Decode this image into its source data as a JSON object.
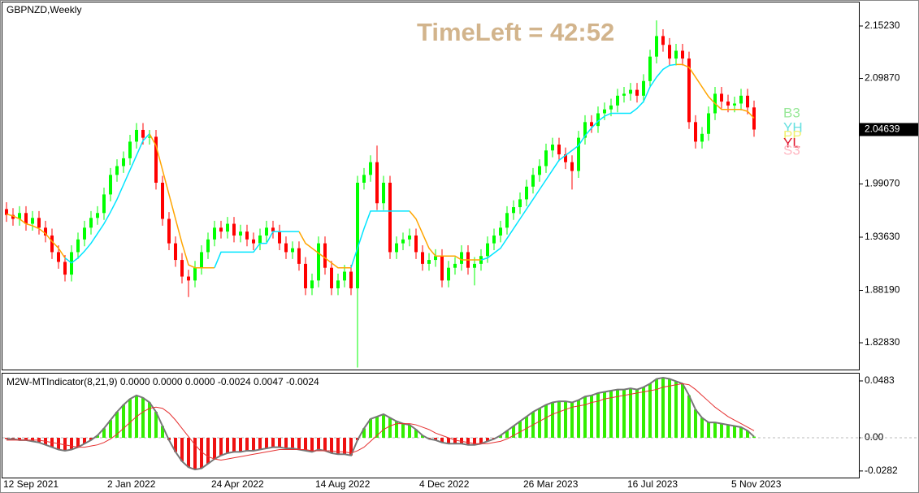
{
  "chart_data": [
    {
      "type": "candlestick",
      "title": "GBPNZD,Weekly",
      "annotation": "TimeLeft = 42:52",
      "categories": [
        "12 Sep 2021",
        null,
        null,
        null,
        null,
        null,
        null,
        null,
        null,
        null,
        null,
        null,
        null,
        null,
        null,
        null,
        "2 Jan 2022",
        null,
        null,
        null,
        null,
        null,
        null,
        null,
        null,
        null,
        null,
        null,
        null,
        null,
        null,
        null,
        "24 Apr 2022",
        null,
        null,
        null,
        null,
        null,
        null,
        null,
        null,
        null,
        null,
        null,
        null,
        null,
        null,
        null,
        "14 Aug 2022",
        null,
        null,
        null,
        null,
        null,
        null,
        null,
        null,
        null,
        null,
        null,
        null,
        null,
        null,
        null,
        "4 Dec 2022",
        null,
        null,
        null,
        null,
        null,
        null,
        null,
        null,
        null,
        null,
        null,
        null,
        null,
        null,
        null,
        "26 Mar 2023",
        null,
        null,
        null,
        null,
        null,
        null,
        null,
        null,
        null,
        null,
        null,
        null,
        null,
        null,
        null,
        "16 Jul 2023",
        null,
        null,
        null,
        null,
        null,
        null,
        null,
        null,
        null,
        null,
        null,
        null,
        null,
        null,
        null,
        "5 Nov 2023",
        null,
        null,
        null
      ],
      "open": [
        1.965,
        1.959,
        1.955,
        1.961,
        1.95,
        1.956,
        1.946,
        1.938,
        1.921,
        1.911,
        1.898,
        1.921,
        1.934,
        1.946,
        1.956,
        1.961,
        1.98,
        2.0,
        2.009,
        2.017,
        2.034,
        2.046,
        2.038,
        2.039,
        1.992,
        1.955,
        1.93,
        1.913,
        1.896,
        1.892,
        1.905,
        1.921,
        1.934,
        1.946,
        1.942,
        1.95,
        1.938,
        1.942,
        1.934,
        1.93,
        1.938,
        1.946,
        1.942,
        1.93,
        1.921,
        1.925,
        1.909,
        1.884,
        1.892,
        1.93,
        1.905,
        1.884,
        1.892,
        1.901,
        1.884,
        1.992,
        2.0,
        2.013,
        1.971,
        1.992,
        1.921,
        1.93,
        1.934,
        1.938,
        1.921,
        1.909,
        1.913,
        1.917,
        1.892,
        1.905,
        1.909,
        1.921,
        1.905,
        1.909,
        1.917,
        1.93,
        1.938,
        1.946,
        1.961,
        1.967,
        1.975,
        1.988,
        2.0,
        2.009,
        2.025,
        2.031,
        2.021,
        2.013,
        2.004,
        2.038,
        2.054,
        2.05,
        2.063,
        2.067,
        2.071,
        2.081,
        2.083,
        2.087,
        2.081,
        2.096,
        2.121,
        2.142,
        2.133,
        2.119,
        2.127,
        2.119,
        2.054,
        2.034,
        2.042,
        2.063,
        2.083,
        2.075,
        2.071,
        2.073,
        2.081,
        2.069
      ],
      "high": [
        1.972,
        1.966,
        1.968,
        1.968,
        1.963,
        1.963,
        1.953,
        1.945,
        1.928,
        1.918,
        1.928,
        1.941,
        1.953,
        1.963,
        1.968,
        1.987,
        2.007,
        2.016,
        2.024,
        2.041,
        2.053,
        2.053,
        2.046,
        2.046,
        1.999,
        1.962,
        1.937,
        1.92,
        1.903,
        1.912,
        1.928,
        1.941,
        1.953,
        1.953,
        1.957,
        1.957,
        1.949,
        1.949,
        1.941,
        1.945,
        1.953,
        1.953,
        1.949,
        1.937,
        1.932,
        1.932,
        1.916,
        1.899,
        1.937,
        1.937,
        1.912,
        1.899,
        1.908,
        1.908,
        1.999,
        2.007,
        2.02,
        2.03,
        1.999,
        1.999,
        1.937,
        1.941,
        1.945,
        1.945,
        1.928,
        1.92,
        1.924,
        1.924,
        1.912,
        1.916,
        1.928,
        1.928,
        1.916,
        1.924,
        1.937,
        1.945,
        1.953,
        1.968,
        1.974,
        1.982,
        1.995,
        2.007,
        2.016,
        2.032,
        2.038,
        2.038,
        2.028,
        2.02,
        2.045,
        2.061,
        2.061,
        2.07,
        2.074,
        2.078,
        2.088,
        2.09,
        2.094,
        2.094,
        2.103,
        2.128,
        2.158,
        2.149,
        2.14,
        2.134,
        2.134,
        2.126,
        2.061,
        2.049,
        2.07,
        2.09,
        2.09,
        2.082,
        2.08,
        2.088,
        2.088,
        2.076
      ],
      "low": [
        1.952,
        1.948,
        1.948,
        1.943,
        1.943,
        1.939,
        1.931,
        1.914,
        1.904,
        1.891,
        1.891,
        1.914,
        1.927,
        1.939,
        1.949,
        1.954,
        1.973,
        1.993,
        2.002,
        2.01,
        2.027,
        2.031,
        2.031,
        1.985,
        1.948,
        1.923,
        1.906,
        1.889,
        1.875,
        1.885,
        1.898,
        1.914,
        1.927,
        1.935,
        1.935,
        1.931,
        1.931,
        1.927,
        1.923,
        1.923,
        1.931,
        1.935,
        1.923,
        1.914,
        1.914,
        1.902,
        1.877,
        1.877,
        1.885,
        1.898,
        1.877,
        1.877,
        1.885,
        1.877,
        1.803,
        1.985,
        1.993,
        1.964,
        1.964,
        1.914,
        1.914,
        1.923,
        1.927,
        1.914,
        1.902,
        1.902,
        1.906,
        1.885,
        1.885,
        1.898,
        1.902,
        1.898,
        1.887,
        1.902,
        1.91,
        1.923,
        1.931,
        1.939,
        1.954,
        1.96,
        1.968,
        1.981,
        1.993,
        2.002,
        2.018,
        2.014,
        2.006,
        1.985,
        1.997,
        2.031,
        2.043,
        2.043,
        2.056,
        2.06,
        2.064,
        2.074,
        2.076,
        2.074,
        2.074,
        2.089,
        2.114,
        2.126,
        2.112,
        2.112,
        2.112,
        2.047,
        2.027,
        2.027,
        2.035,
        2.056,
        2.068,
        2.064,
        2.064,
        2.066,
        2.062,
        2.039
      ],
      "close": [
        1.959,
        1.955,
        1.961,
        1.95,
        1.956,
        1.946,
        1.938,
        1.921,
        1.911,
        1.898,
        1.921,
        1.934,
        1.946,
        1.956,
        1.961,
        1.98,
        2.0,
        2.009,
        2.017,
        2.034,
        2.046,
        2.038,
        2.039,
        1.992,
        1.955,
        1.93,
        1.913,
        1.896,
        1.892,
        1.905,
        1.921,
        1.934,
        1.946,
        1.942,
        1.95,
        1.938,
        1.942,
        1.934,
        1.93,
        1.938,
        1.946,
        1.942,
        1.93,
        1.921,
        1.925,
        1.909,
        1.884,
        1.892,
        1.93,
        1.905,
        1.884,
        1.892,
        1.901,
        1.884,
        1.992,
        2.0,
        2.013,
        1.971,
        1.992,
        1.921,
        1.93,
        1.934,
        1.938,
        1.921,
        1.909,
        1.913,
        1.917,
        1.892,
        1.905,
        1.909,
        1.921,
        1.905,
        1.909,
        1.917,
        1.93,
        1.938,
        1.946,
        1.961,
        1.967,
        1.975,
        1.988,
        2.0,
        2.009,
        2.025,
        2.031,
        2.021,
        2.013,
        2.004,
        2.038,
        2.054,
        2.05,
        2.063,
        2.067,
        2.071,
        2.081,
        2.083,
        2.087,
        2.081,
        2.096,
        2.121,
        2.142,
        2.133,
        2.119,
        2.127,
        2.119,
        2.054,
        2.034,
        2.042,
        2.063,
        2.083,
        2.075,
        2.071,
        2.073,
        2.081,
        2.069,
        2.04639
      ],
      "up_color": "#00ff00",
      "down_color": "#ff0000",
      "series": [
        {
          "color": "#ffa500",
          "values": [
            1.96,
            1.958,
            1.955,
            1.95,
            1.948,
            1.945,
            1.94,
            1.932,
            1.925,
            1.915,
            null,
            null,
            null,
            null,
            null,
            null,
            null,
            null,
            null,
            null,
            null,
            null,
            2.042,
            2.03,
            2.005,
            1.98,
            1.955,
            1.93,
            1.908,
            1.905,
            1.905,
            1.905,
            1.905,
            null,
            null,
            null,
            null,
            null,
            null,
            null,
            null,
            null,
            null,
            null,
            null,
            1.942,
            1.93,
            1.925,
            1.92,
            1.915,
            1.91,
            1.905,
            1.905,
            1.905,
            null,
            null,
            null,
            null,
            null,
            null,
            null,
            null,
            1.963,
            1.955,
            1.94,
            1.925,
            1.917,
            1.917,
            1.917,
            1.917,
            1.913,
            1.913,
            1.913,
            1.913,
            null,
            null,
            null,
            null,
            null,
            null,
            null,
            null,
            null,
            null,
            null,
            null,
            null,
            null,
            null,
            null,
            null,
            null,
            null,
            null,
            null,
            null,
            null,
            null,
            null,
            null,
            null,
            null,
            null,
            2.113,
            2.113,
            2.11,
            2.1,
            2.09,
            2.08,
            2.073,
            2.067,
            2.067,
            2.067,
            2.067,
            2.065,
            2.058
          ]
        },
        {
          "color": "#00e5ff",
          "values": [
            null,
            null,
            null,
            null,
            null,
            null,
            null,
            null,
            null,
            1.915,
            1.91,
            1.915,
            1.922,
            1.93,
            1.94,
            1.95,
            1.962,
            1.975,
            1.99,
            2.005,
            2.02,
            2.035,
            2.042,
            null,
            null,
            null,
            null,
            null,
            null,
            null,
            null,
            null,
            1.905,
            1.921,
            1.921,
            1.921,
            1.921,
            1.921,
            1.921,
            1.93,
            1.93,
            1.942,
            1.942,
            1.942,
            1.942,
            1.942,
            null,
            null,
            null,
            null,
            null,
            null,
            null,
            1.905,
            1.925,
            1.945,
            1.963,
            1.963,
            1.963,
            1.963,
            1.963,
            1.963,
            1.963,
            null,
            null,
            null,
            null,
            null,
            null,
            null,
            null,
            null,
            null,
            1.913,
            1.915,
            1.92,
            1.925,
            1.935,
            1.945,
            1.955,
            1.965,
            1.975,
            1.985,
            1.995,
            2.005,
            2.015,
            2.02,
            2.025,
            2.03,
            2.04,
            2.048,
            2.055,
            2.06,
            2.063,
            2.063,
            2.063,
            2.063,
            2.068,
            2.075,
            2.09,
            2.1,
            2.108,
            2.112,
            2.113,
            null,
            null,
            null,
            null,
            null,
            null,
            null,
            null,
            null,
            null,
            null,
            null
          ]
        }
      ],
      "levels": [
        {
          "label": "B3",
          "color": "#98e898"
        },
        {
          "label": "YH",
          "color": "#66e0e0"
        },
        {
          "label": "PP",
          "color": "#f0f070"
        },
        {
          "label": "YL",
          "color": "#e0142c"
        },
        {
          "label": "S3",
          "color": "#ffb6c1"
        }
      ],
      "ylim": [
        1.8009,
        2.1764
      ],
      "yticks": [
        {
          "value": 2.1523,
          "label": "2.15230"
        },
        {
          "value": 2.0987,
          "label": "2.09870"
        },
        {
          "value": 1.9907,
          "label": "1.99070"
        },
        {
          "value": 1.9363,
          "label": "1.93630"
        },
        {
          "value": 1.8819,
          "label": "1.88190"
        },
        {
          "value": 1.8283,
          "label": "1.82830"
        }
      ]
    },
    {
      "type": "bar",
      "title": "M2W-MTIndicator(8,21,9) 0.0000 0.0000 0.0000 -0.0024 0.0047 -0.0024",
      "values": [
        -0.001,
        -0.001,
        -0.002,
        -0.002,
        -0.003,
        -0.004,
        -0.006,
        -0.008,
        -0.01,
        -0.011,
        -0.01,
        -0.008,
        -0.005,
        -0.002,
        0.002,
        0.008,
        0.015,
        0.022,
        0.028,
        0.033,
        0.036,
        0.034,
        0.03,
        0.022,
        0.01,
        -0.002,
        -0.012,
        -0.02,
        -0.025,
        -0.027,
        -0.026,
        -0.022,
        -0.018,
        -0.015,
        -0.013,
        -0.012,
        -0.012,
        -0.011,
        -0.011,
        -0.01,
        -0.009,
        -0.008,
        -0.008,
        -0.009,
        -0.009,
        -0.01,
        -0.011,
        -0.012,
        -0.01,
        -0.011,
        -0.013,
        -0.014,
        -0.014,
        -0.015,
        -0.002,
        0.008,
        0.016,
        0.018,
        0.02,
        0.017,
        0.014,
        0.012,
        0.011,
        0.007,
        0.002,
        -0.001,
        -0.002,
        -0.004,
        -0.005,
        -0.005,
        -0.005,
        -0.006,
        -0.006,
        -0.005,
        -0.003,
        -0.001,
        0.002,
        0.006,
        0.01,
        0.014,
        0.018,
        0.022,
        0.025,
        0.028,
        0.03,
        0.031,
        0.031,
        0.03,
        0.032,
        0.035,
        0.036,
        0.038,
        0.039,
        0.04,
        0.041,
        0.041,
        0.042,
        0.041,
        0.043,
        0.046,
        0.05,
        0.051,
        0.05,
        0.048,
        0.046,
        0.036,
        0.024,
        0.017,
        0.013,
        0.013,
        0.012,
        0.011,
        0.01,
        0.009,
        0.006,
        0.001
      ],
      "pos_color": "#33ee00",
      "neg_color": "#ee1111",
      "outline_color": "#777777",
      "series": [
        {
          "color": "#e53030",
          "values": [
            -0.002,
            -0.002,
            -0.002,
            -0.002,
            -0.002,
            -0.002,
            -0.003,
            -0.004,
            -0.005,
            -0.006,
            -0.007,
            -0.008,
            -0.008,
            -0.007,
            -0.006,
            -0.004,
            -0.001,
            0.003,
            0.008,
            0.013,
            0.018,
            0.022,
            0.025,
            0.026,
            0.025,
            0.021,
            0.015,
            0.008,
            0.001,
            -0.006,
            -0.012,
            -0.016,
            -0.018,
            -0.019,
            -0.018,
            -0.017,
            -0.016,
            -0.015,
            -0.014,
            -0.013,
            -0.012,
            -0.011,
            -0.01,
            -0.01,
            -0.01,
            -0.01,
            -0.01,
            -0.011,
            -0.011,
            -0.011,
            -0.011,
            -0.012,
            -0.012,
            -0.013,
            -0.011,
            -0.008,
            -0.003,
            0.002,
            0.007,
            0.01,
            0.012,
            0.012,
            0.012,
            0.011,
            0.009,
            0.007,
            0.004,
            0.002,
            0.0,
            -0.002,
            -0.003,
            -0.004,
            -0.005,
            -0.005,
            -0.005,
            -0.004,
            -0.003,
            -0.001,
            0.002,
            0.005,
            0.008,
            0.011,
            0.014,
            0.017,
            0.02,
            0.022,
            0.024,
            0.026,
            0.027,
            0.028,
            0.03,
            0.031,
            0.033,
            0.034,
            0.035,
            0.036,
            0.037,
            0.038,
            0.039,
            0.04,
            0.041,
            0.043,
            0.044,
            0.045,
            0.046,
            0.045,
            0.041,
            0.036,
            0.031,
            0.026,
            0.022,
            0.018,
            0.015,
            0.012,
            0.009,
            0.006
          ]
        }
      ],
      "ylim": [
        -0.0338,
        0.0545
      ],
      "yticks": [
        0.0483,
        {
          "value": 0,
          "label": "0.00"
        },
        -0.0282
      ]
    }
  ]
}
